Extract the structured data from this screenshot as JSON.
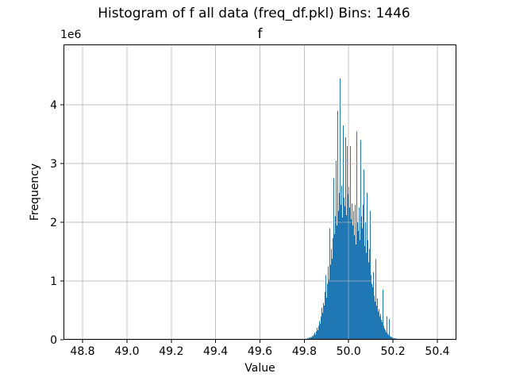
{
  "figure": {
    "suptitle": "Histogram of f all data (freq_df.pkl) Bins: 1446",
    "axes_title": "f",
    "xlabel": "Value",
    "ylabel": "Frequency",
    "offset_text": "1e6"
  },
  "chart_data": {
    "type": "bar",
    "subtype": "histogram",
    "title": "f",
    "suptitle": "Histogram of f all data (freq_df.pkl) Bins: 1446",
    "xlabel": "Value",
    "ylabel": "Frequency",
    "y_offset_label": "1e6",
    "bins_reported": 1446,
    "grid": true,
    "grid_on_top": true,
    "legend": "none",
    "bar_color": "#1f77b4",
    "grid_color": "#b0b0b0",
    "spine_color": "#000000",
    "text_color": "#000000",
    "xlim": [
      48.714,
      50.486
    ],
    "ylim_e6": [
      0,
      5.03
    ],
    "xticks": {
      "values": [
        48.8,
        49.0,
        49.2,
        49.4,
        49.6,
        49.8,
        50.0,
        50.2,
        50.4
      ],
      "labels": [
        "48.8",
        "49.0",
        "49.2",
        "49.4",
        "49.6",
        "49.8",
        "50.0",
        "50.2",
        "50.4"
      ]
    },
    "yticks": {
      "values_e6": [
        0,
        1,
        2,
        3,
        4
      ],
      "labels": [
        "0",
        "1",
        "2",
        "3",
        "4"
      ]
    },
    "bars": {
      "x_start": 49.813,
      "x_step": 0.00358,
      "unit": "1e6 counts per pixel-column bin",
      "heights_e6": [
        0.03,
        0.02,
        0.04,
        0.03,
        0.05,
        0.04,
        0.07,
        0.06,
        0.09,
        0.12,
        0.09,
        0.14,
        0.2,
        0.16,
        0.24,
        0.32,
        0.27,
        0.4,
        0.55,
        0.46,
        0.63,
        0.58,
        0.82,
        1.1,
        0.72,
        0.95,
        1.25,
        1.02,
        1.9,
        1.28,
        1.55,
        1.38,
        1.73,
        2.75,
        1.8,
        2.1,
        3.05,
        1.95,
        3.9,
        2.2,
        2.5,
        4.45,
        2.3,
        2.62,
        2.08,
        3.65,
        2.42,
        2.28,
        3.45,
        2.12,
        3.3,
        2.48,
        2.6,
        2.25,
        3.3,
        2.05,
        2.32,
        1.95,
        2.2,
        1.78,
        2.3,
        1.62,
        3.55,
        2.0,
        1.85,
        2.25,
        1.7,
        3.4,
        2.1,
        1.9,
        2.3,
        2.9,
        1.6,
        2.0,
        1.48,
        2.5,
        1.7,
        1.32,
        1.55,
        2.2,
        1.1,
        0.95,
        0.9,
        1.15,
        0.75,
        0.65,
        1.37,
        0.58,
        0.7,
        0.48,
        0.52,
        0.4,
        0.44,
        0.34,
        0.3,
        0.85,
        0.24,
        0.19,
        0.16,
        0.13,
        0.4,
        0.1,
        0.08,
        0.35,
        0.06,
        0.05,
        0.05,
        0.04,
        0.03,
        0.03,
        0.02,
        0.02,
        0.02,
        0.01,
        0.01,
        0.01
      ]
    }
  }
}
